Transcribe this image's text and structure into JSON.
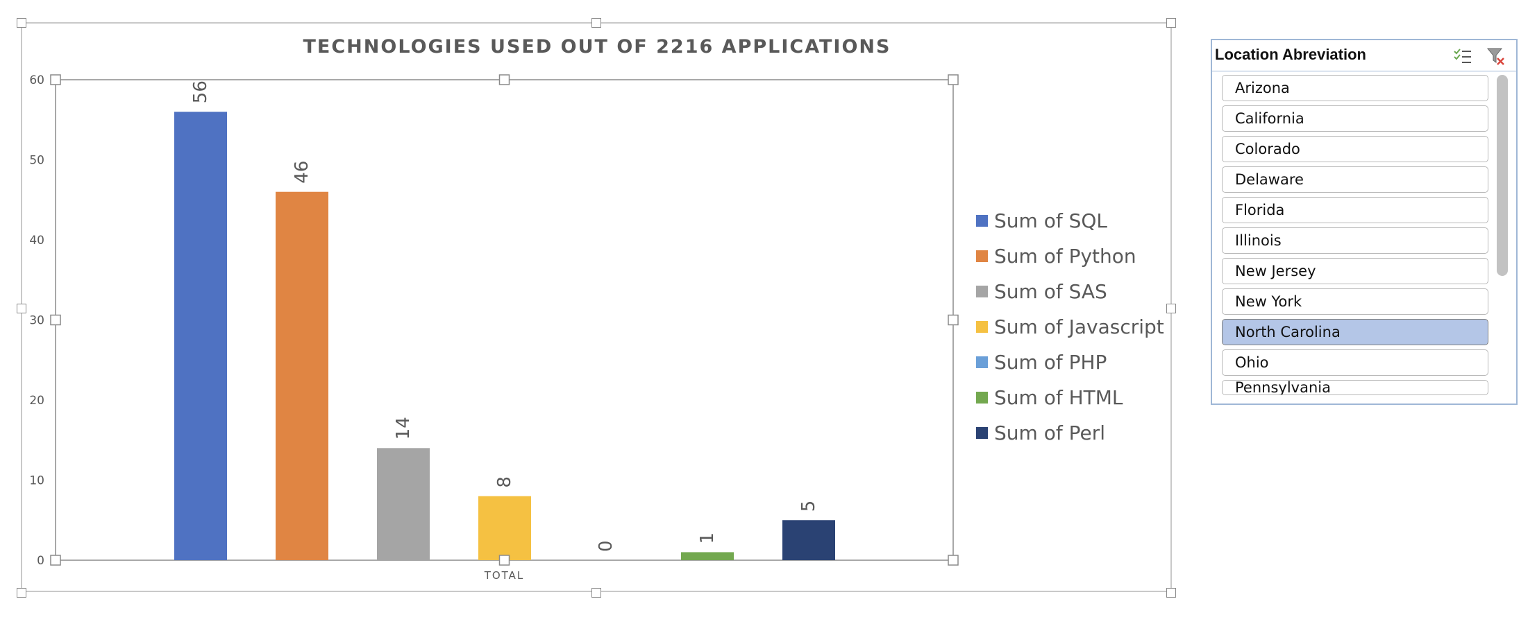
{
  "chart_data": {
    "type": "bar",
    "title": "TECHNOLOGIES USED OUT OF 2216 APPLICATIONS",
    "categories": [
      "TOTAL"
    ],
    "series": [
      {
        "name": "Sum of SQL",
        "values": [
          56
        ],
        "color": "#4f72c2"
      },
      {
        "name": "Sum of Python",
        "values": [
          46
        ],
        "color": "#e08543"
      },
      {
        "name": "Sum of SAS",
        "values": [
          14
        ],
        "color": "#a5a5a5"
      },
      {
        "name": "Sum of Javascript",
        "values": [
          8
        ],
        "color": "#f5c142"
      },
      {
        "name": "Sum of PHP",
        "values": [
          0
        ],
        "color": "#6a9fd8"
      },
      {
        "name": "Sum of HTML",
        "values": [
          1
        ],
        "color": "#73a84f"
      },
      {
        "name": "Sum of Perl",
        "values": [
          5
        ],
        "color": "#2a4273"
      }
    ],
    "xlabel": "",
    "ylabel": "",
    "ylim": [
      0,
      60
    ],
    "yticks": [
      "0",
      "10",
      "20",
      "30",
      "40",
      "50",
      "60"
    ],
    "grid": false,
    "legend": "right"
  },
  "slicer": {
    "title": "Location Abreviation",
    "multiselect_icon": "multi-select-icon",
    "clear_filter_icon": "clear-filter-icon",
    "items": [
      {
        "label": "Arizona",
        "selected": false
      },
      {
        "label": "California",
        "selected": false
      },
      {
        "label": "Colorado",
        "selected": false
      },
      {
        "label": "Delaware",
        "selected": false
      },
      {
        "label": "Florida",
        "selected": false
      },
      {
        "label": "Illinois",
        "selected": false
      },
      {
        "label": "New Jersey",
        "selected": false
      },
      {
        "label": "New York",
        "selected": false
      },
      {
        "label": "North Carolina",
        "selected": true
      },
      {
        "label": "Ohio",
        "selected": false
      },
      {
        "label": "Pennsylvania",
        "selected": false
      }
    ]
  }
}
